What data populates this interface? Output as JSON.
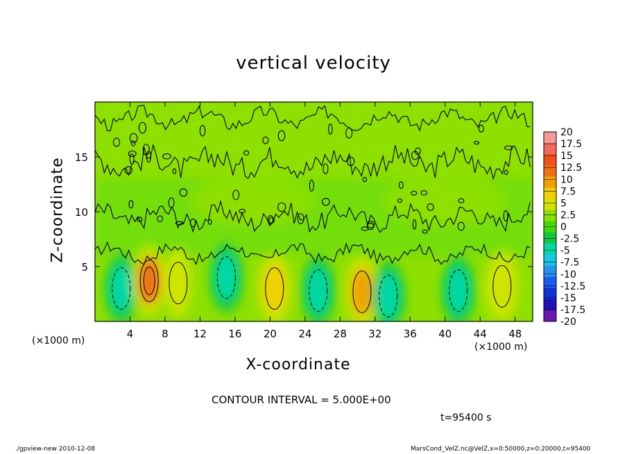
{
  "chart_data": {
    "type": "heatmap",
    "title": "vertical velocity",
    "xlabel": "X-coordinate",
    "ylabel": "Z-coordinate",
    "x_unit_label": "(×1000 m)",
    "xlim": [
      0,
      50
    ],
    "ylim": [
      0,
      20
    ],
    "x_ticks": [
      4,
      8,
      12,
      16,
      20,
      24,
      28,
      32,
      36,
      40,
      44,
      48
    ],
    "y_ticks": [
      5,
      10,
      15
    ],
    "colorbar": {
      "labels": [
        "20",
        "17.5",
        "15",
        "12.5",
        "10",
        "7.5",
        "5",
        "2.5",
        "0",
        "-2.5",
        "-5",
        "-7.5",
        "-10",
        "-12.5",
        "-15",
        "-17.5",
        "-20"
      ],
      "colors": [
        "#f49a9a",
        "#f46a5a",
        "#f2501f",
        "#f07012",
        "#f2a200",
        "#f2cf00",
        "#cfe400",
        "#8ee000",
        "#45d900",
        "#10c840",
        "#00d8a6",
        "#18c8e8",
        "#2692f2",
        "#1a5cf0",
        "#1030d8",
        "#2010b8",
        "#6a18b0"
      ]
    },
    "cells": [
      {
        "x": 3,
        "z": 3,
        "value": -6
      },
      {
        "x": 6.2,
        "z": 3.7,
        "value": 12
      },
      {
        "x": 9.5,
        "z": 3.5,
        "value": 3
      },
      {
        "x": 15,
        "z": 4,
        "value": -5
      },
      {
        "x": 20.5,
        "z": 3,
        "value": 6
      },
      {
        "x": 25.5,
        "z": 2.8,
        "value": -6
      },
      {
        "x": 30.5,
        "z": 2.7,
        "value": 8
      },
      {
        "x": 33.5,
        "z": 2.3,
        "value": -5
      },
      {
        "x": 41.5,
        "z": 2.8,
        "value": -7
      },
      {
        "x": 46.5,
        "z": 3.2,
        "value": 5
      },
      {
        "x": 18,
        "z": 11,
        "value": 2
      },
      {
        "x": 40,
        "z": 11,
        "value": 1
      }
    ]
  },
  "contour_interval": "CONTOUR INTERVAL = 5.000E+00",
  "time_label": "t=95400 s",
  "footer_left": "./gpview-new  2010-12-08",
  "footer_right": "MarsCond_VelZ.nc@VelZ,x=0:50000,z=0:20000,t=95400"
}
